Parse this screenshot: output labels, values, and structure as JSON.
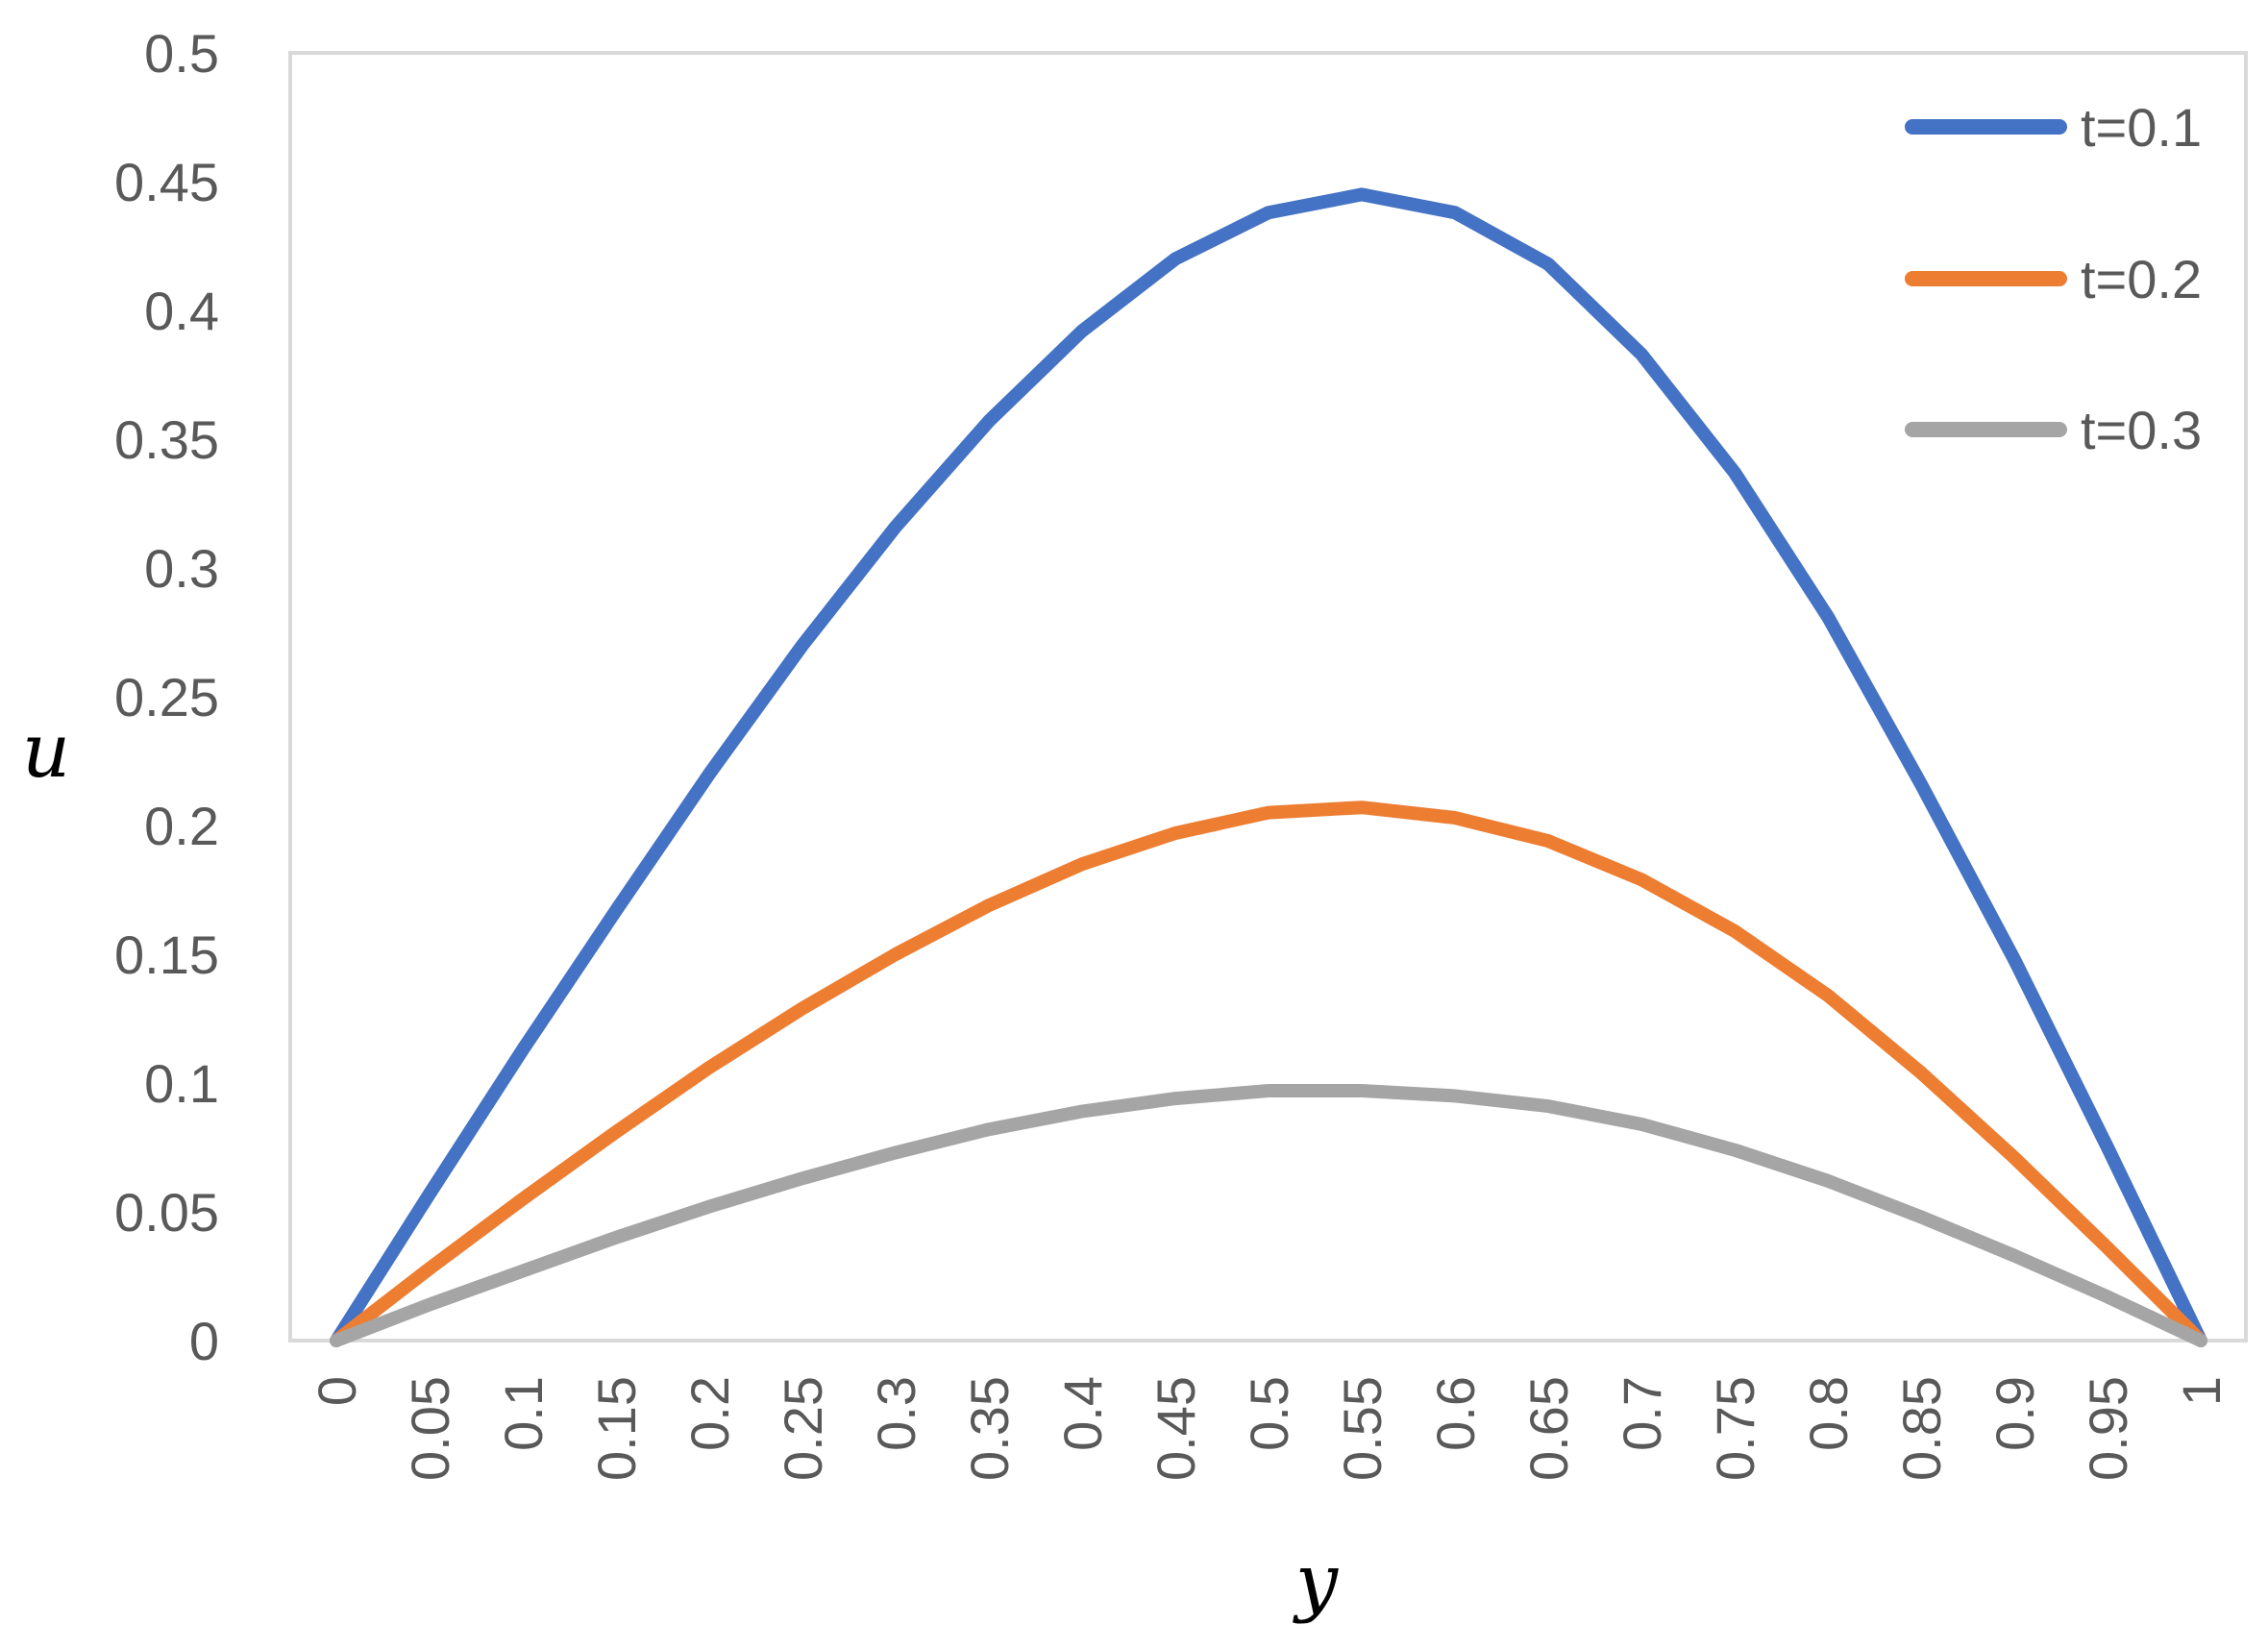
{
  "chart_data": {
    "type": "line",
    "xlabel": "y",
    "ylabel": "u",
    "x": [
      0,
      0.05,
      0.1,
      0.15,
      0.2,
      0.25,
      0.3,
      0.35,
      0.4,
      0.45,
      0.5,
      0.55,
      0.6,
      0.65,
      0.7,
      0.75,
      0.8,
      0.85,
      0.9,
      0.95,
      1
    ],
    "x_tick_labels": [
      "0",
      "0.05",
      "0.1",
      "0.15",
      "0.2",
      "0.25",
      "0.3",
      "0.35",
      "0.4",
      "0.45",
      "0.5",
      "0.55",
      "0.6",
      "0.65",
      "0.7",
      "0.75",
      "0.8",
      "0.85",
      "0.9",
      "0.95",
      "1"
    ],
    "y_ticks": [
      0,
      0.05,
      0.1,
      0.15,
      0.2,
      0.25,
      0.3,
      0.35,
      0.4,
      0.45,
      0.5
    ],
    "y_tick_labels": [
      "0",
      "0.05",
      "0.1",
      "0.15",
      "0.2",
      "0.25",
      "0.3",
      "0.35",
      "0.4",
      "0.45",
      "0.5"
    ],
    "ylim": [
      0,
      0.5
    ],
    "grid": false,
    "legend_position": "top-right",
    "series": [
      {
        "name": "t=0.1",
        "color": "#4472c4",
        "values": [
          0,
          0.057,
          0.113,
          0.167,
          0.22,
          0.27,
          0.316,
          0.357,
          0.392,
          0.42,
          0.438,
          0.445,
          0.438,
          0.418,
          0.383,
          0.337,
          0.281,
          0.216,
          0.148,
          0.075,
          0
        ]
      },
      {
        "name": "t=0.2",
        "color": "#ed7d31",
        "values": [
          0,
          0.028,
          0.055,
          0.081,
          0.106,
          0.129,
          0.15,
          0.169,
          0.185,
          0.197,
          0.205,
          0.207,
          0.203,
          0.194,
          0.179,
          0.159,
          0.134,
          0.104,
          0.071,
          0.036,
          0
        ]
      },
      {
        "name": "t=0.3",
        "color": "#a5a5a5",
        "values": [
          0,
          0.014,
          0.027,
          0.04,
          0.052,
          0.063,
          0.073,
          0.082,
          0.089,
          0.094,
          0.097,
          0.097,
          0.095,
          0.091,
          0.084,
          0.074,
          0.062,
          0.048,
          0.033,
          0.017,
          0
        ]
      }
    ]
  }
}
